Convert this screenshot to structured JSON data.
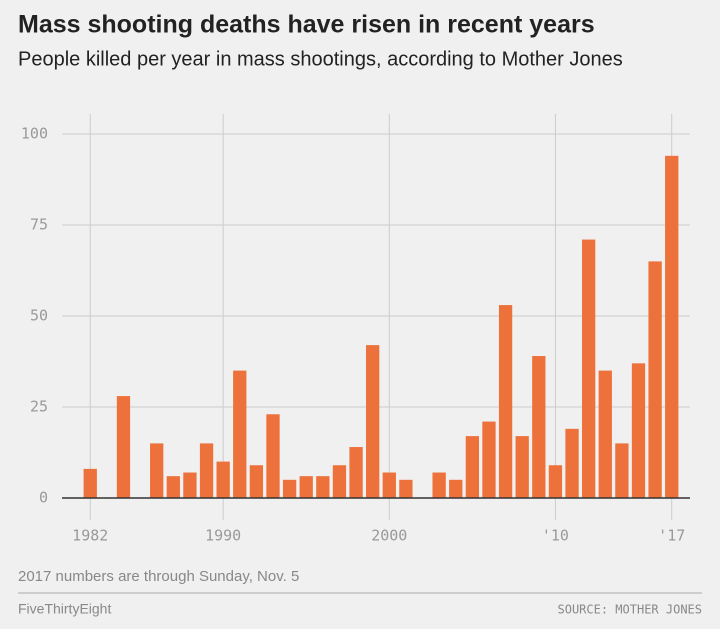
{
  "chart_data": {
    "type": "bar",
    "title": "Mass shooting deaths have risen in recent years",
    "subtitle": "People killed per year in mass shootings, according to Mother Jones",
    "note": "2017 numbers are through Sunday, Nov. 5",
    "footer": "FiveThirtyEight",
    "source": "SOURCE: MOTHER JONES",
    "x": [
      1982,
      1983,
      1984,
      1985,
      1986,
      1987,
      1988,
      1989,
      1990,
      1991,
      1992,
      1993,
      1994,
      1995,
      1996,
      1997,
      1998,
      1999,
      2000,
      2001,
      2002,
      2003,
      2004,
      2005,
      2006,
      2007,
      2008,
      2009,
      2010,
      2011,
      2012,
      2013,
      2014,
      2015,
      2016,
      2017
    ],
    "values": [
      8,
      0,
      28,
      0,
      15,
      6,
      7,
      15,
      10,
      35,
      9,
      23,
      5,
      6,
      6,
      9,
      14,
      42,
      7,
      5,
      0,
      7,
      5,
      17,
      21,
      53,
      17,
      39,
      9,
      19,
      71,
      35,
      15,
      37,
      65,
      94
    ],
    "color": "#ed713a",
    "xlim": [
      1980.3,
      2018.1
    ],
    "xticks": [
      1982,
      1990,
      2000,
      {
        "value": 2010,
        "label": "'10"
      },
      {
        "value": 2017,
        "label": "'17"
      }
    ],
    "ylim": [
      0,
      100
    ],
    "yticks": [
      0,
      25,
      50,
      75,
      100
    ],
    "grid": true
  }
}
